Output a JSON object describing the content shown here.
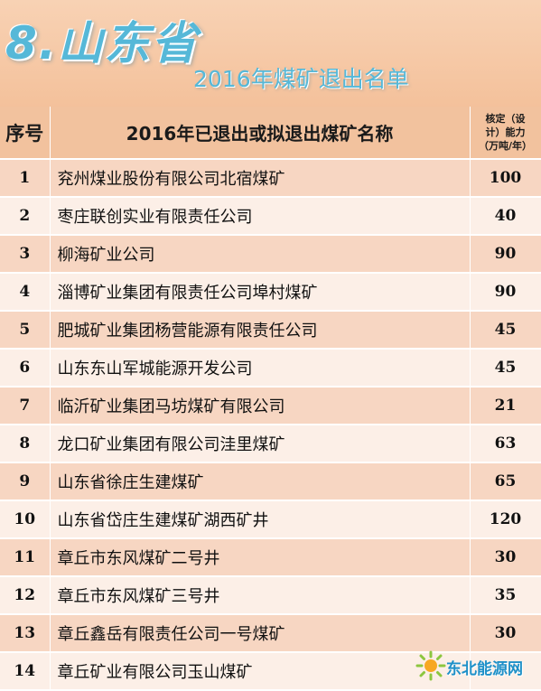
{
  "header": {
    "big_title": "8.山东省",
    "sub_title": "2016年煤矿退出名单"
  },
  "table": {
    "columns": {
      "index": "序号",
      "name": "2016年已退出或拟退出煤矿名称",
      "capacity_line1": "核定（设",
      "capacity_line2": "计）能力",
      "capacity_line3": "（万吨/年）"
    },
    "rows": [
      {
        "no": "1",
        "name": "兖州煤业股份有限公司北宿煤矿",
        "capacity": "100"
      },
      {
        "no": "2",
        "name": "枣庄联创实业有限责任公司",
        "capacity": "40"
      },
      {
        "no": "3",
        "name": "柳海矿业公司",
        "capacity": "90"
      },
      {
        "no": "4",
        "name": "淄博矿业集团有限责任公司埠村煤矿",
        "capacity": "90"
      },
      {
        "no": "5",
        "name": "肥城矿业集团杨营能源有限责任公司",
        "capacity": "45"
      },
      {
        "no": "6",
        "name": "山东东山军城能源开发公司",
        "capacity": "45"
      },
      {
        "no": "7",
        "name": "临沂矿业集团马坊煤矿有限公司",
        "capacity": "21"
      },
      {
        "no": "8",
        "name": "龙口矿业集团有限公司洼里煤矿",
        "capacity": "63"
      },
      {
        "no": "9",
        "name": "山东省徐庄生建煤矿",
        "capacity": "65"
      },
      {
        "no": "10",
        "name": "山东省岱庄生建煤矿湖西矿井",
        "capacity": "120"
      },
      {
        "no": "11",
        "name": "章丘市东风煤矿二号井",
        "capacity": "30"
      },
      {
        "no": "12",
        "name": "章丘市东风煤矿三号井",
        "capacity": "35"
      },
      {
        "no": "13",
        "name": "章丘鑫岳有限责任公司一号煤矿",
        "capacity": "30"
      },
      {
        "no": "14",
        "name": "章丘矿业有限公司玉山煤矿",
        "capacity": ""
      }
    ]
  },
  "watermark": {
    "text": "东北能源网",
    "icon": "sun-logo-icon"
  }
}
